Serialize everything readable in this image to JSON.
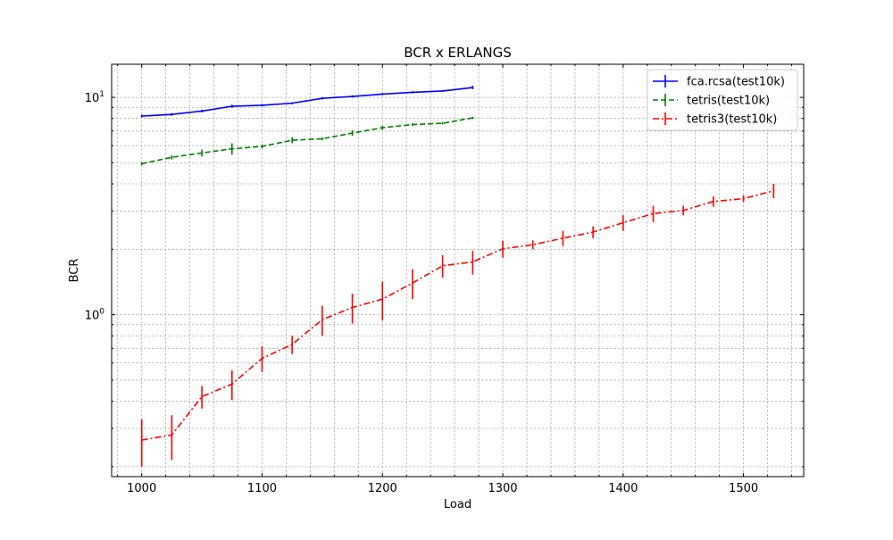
{
  "chart_data": {
    "type": "line",
    "title": "BCR x ERLANGS",
    "xlabel": "Load",
    "ylabel": "BCR",
    "xlim": [
      975,
      1550
    ],
    "ylim": [
      0.18,
      14.2
    ],
    "yscale": "log",
    "grid": true,
    "legend_position": "top-right",
    "x_ticks": [
      1000,
      1100,
      1200,
      1300,
      1400,
      1500
    ],
    "x_tick_labels": [
      "1000",
      "1100",
      "1200",
      "1300",
      "1400",
      "1500"
    ],
    "y_major_ticks": [
      1,
      10
    ],
    "y_tick_labels": [
      "10^0",
      "10^1"
    ],
    "series": [
      {
        "name": "fca.rcsa(test10k)",
        "color": "#0000ff",
        "style": "solid",
        "x": [
          1000,
          1025,
          1050,
          1075,
          1100,
          1125,
          1150,
          1175,
          1200,
          1225,
          1250,
          1275
        ],
        "y": [
          8.2,
          8.35,
          8.65,
          9.1,
          9.2,
          9.4,
          9.9,
          10.1,
          10.35,
          10.55,
          10.7,
          11.1
        ],
        "err": [
          0.12,
          0.12,
          0.12,
          0.15,
          0.12,
          0.1,
          0.12,
          0.12,
          0.12,
          0.12,
          0.1,
          0.2
        ]
      },
      {
        "name": "tetris(test10k)",
        "color": "#008000",
        "style": "dashed",
        "x": [
          1000,
          1025,
          1050,
          1075,
          1100,
          1125,
          1150,
          1175,
          1200,
          1225,
          1250,
          1275
        ],
        "y": [
          4.95,
          5.3,
          5.55,
          5.8,
          5.95,
          6.35,
          6.45,
          6.85,
          7.25,
          7.5,
          7.6,
          8.05
        ],
        "err": [
          0.08,
          0.12,
          0.2,
          0.35,
          0.12,
          0.2,
          0.1,
          0.2,
          0.15,
          0.1,
          0.1,
          0.1
        ]
      },
      {
        "name": "tetris3(test10k)",
        "color": "#ff0000",
        "style": "dashdot",
        "x": [
          1000,
          1025,
          1050,
          1075,
          1100,
          1125,
          1150,
          1175,
          1200,
          1225,
          1250,
          1275,
          1300,
          1325,
          1350,
          1375,
          1400,
          1425,
          1450,
          1475,
          1500,
          1525
        ],
        "y": [
          0.265,
          0.28,
          0.42,
          0.48,
          0.63,
          0.73,
          0.95,
          1.08,
          1.18,
          1.4,
          1.68,
          1.75,
          2.01,
          2.1,
          2.25,
          2.4,
          2.65,
          2.92,
          3.02,
          3.32,
          3.42,
          3.72
        ],
        "err": [
          0.065,
          0.065,
          0.05,
          0.075,
          0.085,
          0.07,
          0.15,
          0.17,
          0.24,
          0.22,
          0.2,
          0.22,
          0.18,
          0.1,
          0.18,
          0.15,
          0.22,
          0.25,
          0.15,
          0.18,
          0.12,
          0.28
        ]
      }
    ]
  }
}
